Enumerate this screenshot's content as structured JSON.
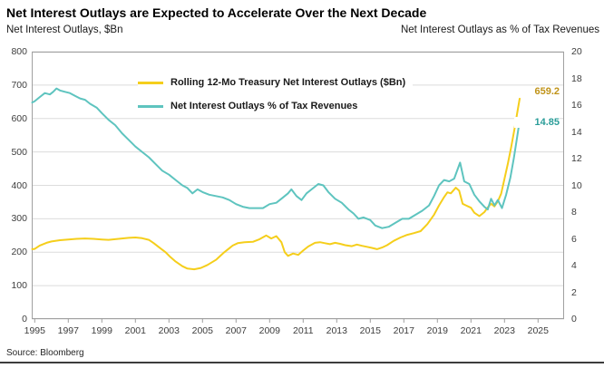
{
  "header": {
    "title": "Net Interest Outlays are Expected to Accelerate Over the Next Decade",
    "left_axis_title": "Net Interest Outlays, $Bn",
    "right_axis_title": "Net Interest Outlays as % of Tax Revenues"
  },
  "source": "Source: Bloomberg",
  "chart_data": {
    "type": "line",
    "title": "Net Interest Outlays are Expected to Accelerate Over the Next Decade",
    "grid": true,
    "grid_color": "#dcdcdc",
    "frame_color": "#a0a0a0",
    "legend_position": "top-center-inside",
    "left_axis": {
      "label": "Net Interest Outlays, $Bn",
      "min": 0,
      "max": 800,
      "step": 100,
      "ticks": [
        0,
        100,
        200,
        300,
        400,
        500,
        600,
        700,
        800
      ]
    },
    "right_axis": {
      "label": "Net Interest Outlays as % of Tax Revenues",
      "min": 0,
      "max": 20,
      "step": 2,
      "ticks": [
        0,
        2,
        4,
        6,
        8,
        10,
        12,
        14,
        16,
        18,
        20
      ]
    },
    "x_axis": {
      "label": "",
      "min": 1994.85,
      "max": 2026.6,
      "ticks": [
        1995,
        1997,
        1999,
        2001,
        2003,
        2005,
        2007,
        2009,
        2011,
        2013,
        2015,
        2017,
        2019,
        2021,
        2023,
        2025
      ]
    },
    "legend": [
      {
        "name": "Rolling 12-Mo Treasury Net Interest Outlays ($Bn)",
        "color": "#f5ce1b",
        "axis": "left"
      },
      {
        "name": "Net Interest Outlays % of Tax Revenues",
        "color": "#5ec4bf",
        "axis": "right"
      }
    ],
    "end_labels": [
      {
        "text": "659.2",
        "color": "#c09318"
      },
      {
        "text": "14.85",
        "color": "#2b9d99"
      }
    ],
    "series": [
      {
        "name": "Rolling 12-Mo Treasury Net Interest Outlays ($Bn)",
        "axis": "left",
        "color": "#f5ce1b",
        "points": [
          [
            1994.85,
            209
          ],
          [
            1995.0,
            210
          ],
          [
            1995.3,
            220
          ],
          [
            1995.7,
            228
          ],
          [
            1996.0,
            232
          ],
          [
            1996.5,
            236
          ],
          [
            1997.0,
            238
          ],
          [
            1997.5,
            240
          ],
          [
            1998.0,
            241
          ],
          [
            1998.5,
            240
          ],
          [
            1999.0,
            238
          ],
          [
            1999.4,
            237
          ],
          [
            1999.8,
            239
          ],
          [
            2000.2,
            241
          ],
          [
            2000.6,
            243
          ],
          [
            2001.0,
            244
          ],
          [
            2001.4,
            242
          ],
          [
            2001.8,
            237
          ],
          [
            2002.1,
            227
          ],
          [
            2002.4,
            215
          ],
          [
            2002.8,
            200
          ],
          [
            2003.1,
            185
          ],
          [
            2003.4,
            172
          ],
          [
            2003.8,
            158
          ],
          [
            2004.1,
            151
          ],
          [
            2004.5,
            149
          ],
          [
            2004.9,
            153
          ],
          [
            2005.3,
            162
          ],
          [
            2005.8,
            177
          ],
          [
            2006.3,
            200
          ],
          [
            2006.8,
            220
          ],
          [
            2007.1,
            227
          ],
          [
            2007.5,
            230
          ],
          [
            2008.0,
            231
          ],
          [
            2008.4,
            239
          ],
          [
            2008.8,
            250
          ],
          [
            2009.1,
            241
          ],
          [
            2009.4,
            248
          ],
          [
            2009.7,
            230
          ],
          [
            2009.9,
            200
          ],
          [
            2010.1,
            189
          ],
          [
            2010.4,
            196
          ],
          [
            2010.7,
            192
          ],
          [
            2011.0,
            205
          ],
          [
            2011.3,
            217
          ],
          [
            2011.7,
            228
          ],
          [
            2012.0,
            230
          ],
          [
            2012.3,
            227
          ],
          [
            2012.6,
            224
          ],
          [
            2012.9,
            228
          ],
          [
            2013.2,
            225
          ],
          [
            2013.5,
            221
          ],
          [
            2013.9,
            218
          ],
          [
            2014.2,
            223
          ],
          [
            2014.5,
            219
          ],
          [
            2014.8,
            216
          ],
          [
            2015.1,
            213
          ],
          [
            2015.4,
            209
          ],
          [
            2015.7,
            214
          ],
          [
            2016.0,
            221
          ],
          [
            2016.4,
            234
          ],
          [
            2016.8,
            244
          ],
          [
            2017.2,
            252
          ],
          [
            2017.6,
            257
          ],
          [
            2018.0,
            263
          ],
          [
            2018.4,
            284
          ],
          [
            2018.8,
            312
          ],
          [
            2019.1,
            340
          ],
          [
            2019.4,
            365
          ],
          [
            2019.6,
            379
          ],
          [
            2019.8,
            376
          ],
          [
            2020.1,
            393
          ],
          [
            2020.3,
            384
          ],
          [
            2020.5,
            345
          ],
          [
            2020.7,
            340
          ],
          [
            2021.0,
            333
          ],
          [
            2021.2,
            318
          ],
          [
            2021.5,
            308
          ],
          [
            2021.8,
            320
          ],
          [
            2022.0,
            334
          ],
          [
            2022.2,
            345
          ],
          [
            2022.4,
            337
          ],
          [
            2022.6,
            352
          ],
          [
            2022.8,
            375
          ],
          [
            2023.0,
            420
          ],
          [
            2023.2,
            465
          ],
          [
            2023.4,
            515
          ],
          [
            2023.6,
            570
          ],
          [
            2023.75,
            615
          ],
          [
            2023.9,
            659.2
          ]
        ],
        "last_value": 659.2
      },
      {
        "name": "Net Interest Outlays % of Tax Revenues",
        "axis": "right",
        "color": "#5ec4bf",
        "points": [
          [
            1994.85,
            16.2
          ],
          [
            1995.0,
            16.3
          ],
          [
            1995.3,
            16.6
          ],
          [
            1995.6,
            16.9
          ],
          [
            1995.9,
            16.8
          ],
          [
            1996.1,
            17.0
          ],
          [
            1996.3,
            17.25
          ],
          [
            1996.5,
            17.1
          ],
          [
            1996.8,
            17.0
          ],
          [
            1997.1,
            16.9
          ],
          [
            1997.4,
            16.7
          ],
          [
            1997.7,
            16.5
          ],
          [
            1998.0,
            16.4
          ],
          [
            1998.3,
            16.1
          ],
          [
            1998.7,
            15.8
          ],
          [
            1999.0,
            15.4
          ],
          [
            1999.4,
            14.9
          ],
          [
            1999.8,
            14.5
          ],
          [
            2000.2,
            13.9
          ],
          [
            2000.6,
            13.4
          ],
          [
            2001.0,
            12.9
          ],
          [
            2001.4,
            12.5
          ],
          [
            2001.8,
            12.1
          ],
          [
            2002.2,
            11.6
          ],
          [
            2002.6,
            11.1
          ],
          [
            2003.0,
            10.8
          ],
          [
            2003.4,
            10.4
          ],
          [
            2003.8,
            10.0
          ],
          [
            2004.1,
            9.8
          ],
          [
            2004.4,
            9.4
          ],
          [
            2004.7,
            9.7
          ],
          [
            2005.0,
            9.5
          ],
          [
            2005.4,
            9.3
          ],
          [
            2005.8,
            9.2
          ],
          [
            2006.2,
            9.1
          ],
          [
            2006.6,
            8.9
          ],
          [
            2007.0,
            8.6
          ],
          [
            2007.4,
            8.4
          ],
          [
            2007.8,
            8.3
          ],
          [
            2008.2,
            8.3
          ],
          [
            2008.6,
            8.3
          ],
          [
            2009.0,
            8.6
          ],
          [
            2009.4,
            8.7
          ],
          [
            2009.8,
            9.1
          ],
          [
            2010.1,
            9.4
          ],
          [
            2010.3,
            9.7
          ],
          [
            2010.6,
            9.2
          ],
          [
            2010.9,
            8.9
          ],
          [
            2011.2,
            9.4
          ],
          [
            2011.5,
            9.7
          ],
          [
            2011.9,
            10.1
          ],
          [
            2012.2,
            10.0
          ],
          [
            2012.5,
            9.5
          ],
          [
            2012.9,
            9.0
          ],
          [
            2013.3,
            8.7
          ],
          [
            2013.7,
            8.2
          ],
          [
            2014.0,
            7.9
          ],
          [
            2014.3,
            7.5
          ],
          [
            2014.6,
            7.6
          ],
          [
            2015.0,
            7.4
          ],
          [
            2015.3,
            7.0
          ],
          [
            2015.7,
            6.8
          ],
          [
            2016.1,
            6.9
          ],
          [
            2016.5,
            7.2
          ],
          [
            2016.9,
            7.5
          ],
          [
            2017.3,
            7.5
          ],
          [
            2017.7,
            7.8
          ],
          [
            2018.1,
            8.1
          ],
          [
            2018.5,
            8.5
          ],
          [
            2018.8,
            9.2
          ],
          [
            2019.1,
            10.0
          ],
          [
            2019.4,
            10.4
          ],
          [
            2019.7,
            10.3
          ],
          [
            2020.0,
            10.5
          ],
          [
            2020.35,
            11.7
          ],
          [
            2020.6,
            10.3
          ],
          [
            2020.9,
            10.1
          ],
          [
            2021.2,
            9.3
          ],
          [
            2021.5,
            8.8
          ],
          [
            2021.8,
            8.4
          ],
          [
            2022.0,
            8.2
          ],
          [
            2022.2,
            9.0
          ],
          [
            2022.4,
            8.5
          ],
          [
            2022.6,
            8.9
          ],
          [
            2022.85,
            8.3
          ],
          [
            2023.1,
            9.3
          ],
          [
            2023.35,
            10.6
          ],
          [
            2023.55,
            12.0
          ],
          [
            2023.75,
            13.6
          ],
          [
            2023.9,
            14.85
          ]
        ],
        "last_value": 14.85
      }
    ]
  }
}
